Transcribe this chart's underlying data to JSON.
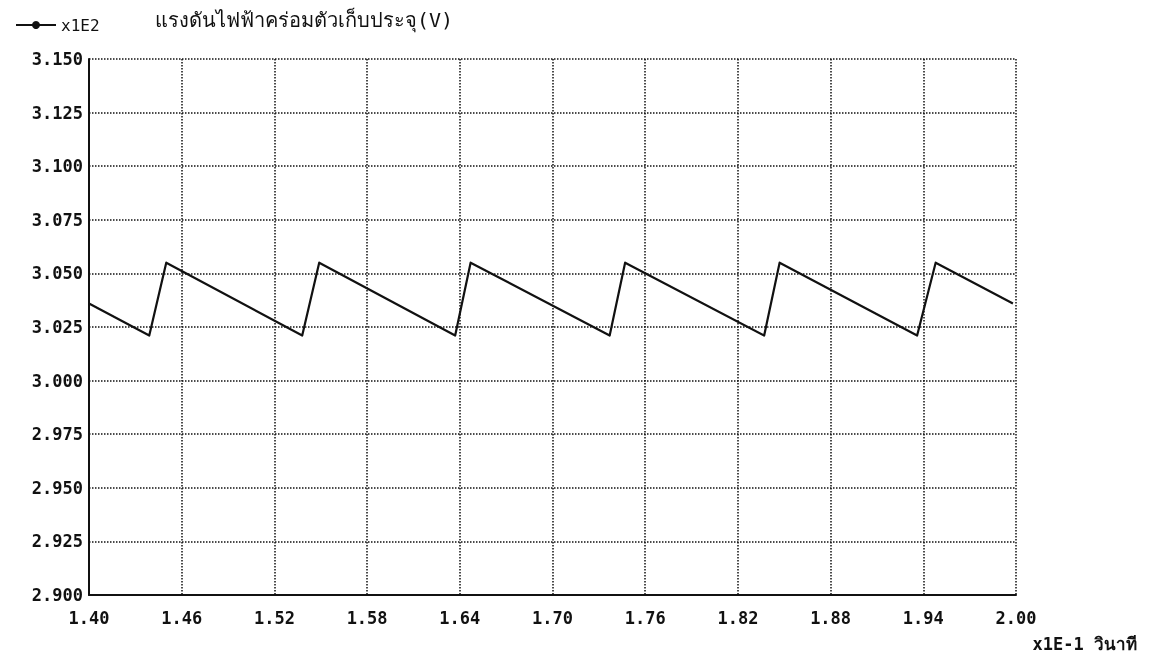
{
  "chart_data": {
    "type": "line",
    "ylabel": "แรงดันไฟฟ้าคร่อมตัวเก็บประจุ(V)",
    "xlabel": "x1E-1 วินาที",
    "x": [
      1.4,
      1.439,
      1.45,
      1.538,
      1.549,
      1.637,
      1.647,
      1.737,
      1.747,
      1.837,
      1.847,
      1.936,
      1.948,
      1.998
    ],
    "series": [
      {
        "name": "x1E2",
        "color": "#111111",
        "values": [
          3.036,
          3.021,
          3.055,
          3.021,
          3.055,
          3.021,
          3.055,
          3.021,
          3.055,
          3.021,
          3.055,
          3.021,
          3.055,
          3.036
        ]
      }
    ],
    "xlim": [
      1.4,
      2.0
    ],
    "xticks": [
      {
        "value": 1.4,
        "label": "1.40"
      },
      {
        "value": 1.46,
        "label": "1.46"
      },
      {
        "value": 1.52,
        "label": "1.52"
      },
      {
        "value": 1.58,
        "label": "1.58"
      },
      {
        "value": 1.64,
        "label": "1.64"
      },
      {
        "value": 1.7,
        "label": "1.70"
      },
      {
        "value": 1.76,
        "label": "1.76"
      },
      {
        "value": 1.82,
        "label": "1.82"
      },
      {
        "value": 1.88,
        "label": "1.88"
      },
      {
        "value": 1.94,
        "label": "1.94"
      },
      {
        "value": 2.0,
        "label": "2.00"
      }
    ],
    "ylim": [
      2.9,
      3.15
    ],
    "yticks": [
      {
        "value": 2.9,
        "label": "2.900"
      },
      {
        "value": 2.925,
        "label": "2.925"
      },
      {
        "value": 2.95,
        "label": "2.950"
      },
      {
        "value": 2.975,
        "label": "2.975"
      },
      {
        "value": 3.0,
        "label": "3.000"
      },
      {
        "value": 3.025,
        "label": "3.025"
      },
      {
        "value": 3.05,
        "label": "3.050"
      },
      {
        "value": 3.075,
        "label": "3.075"
      },
      {
        "value": 3.1,
        "label": "3.100"
      },
      {
        "value": 3.125,
        "label": "3.125"
      },
      {
        "value": 3.15,
        "label": "3.150"
      }
    ],
    "grid": true,
    "legend": "top left",
    "marker": "none",
    "line_style": "solid"
  }
}
